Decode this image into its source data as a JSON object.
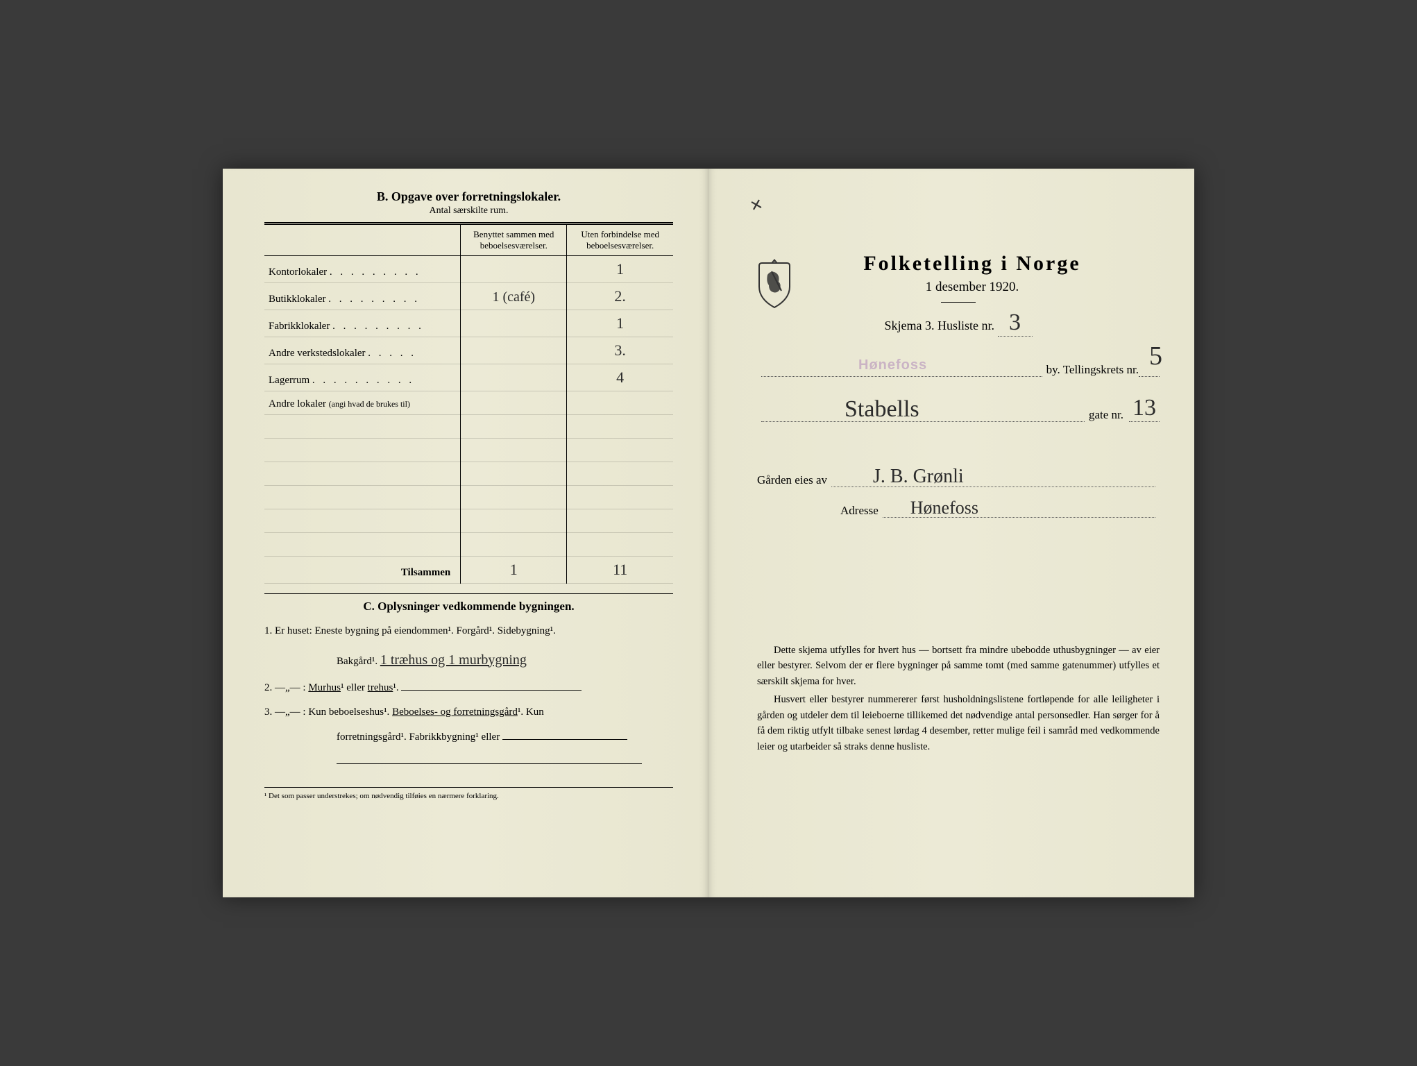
{
  "left": {
    "sectionB": {
      "title": "B.  Opgave over forretningslokaler.",
      "subtitle": "Antal særskilte rum.",
      "col_a": "Benyttet sammen med beboelsesværelser.",
      "col_b": "Uten forbindelse med beboelsesværelser.",
      "rows": [
        {
          "label": "Kontorlokaler",
          "dots": ". . . . . . . . .",
          "a": "",
          "b": "1"
        },
        {
          "label": "Butikklokaler",
          "dots": ". . . . . . . . .",
          "a": "1 (café)",
          "b": "2.",
          "indent": true
        },
        {
          "label": "Fabrikklokaler",
          "dots": ". . . . . . . . .",
          "a": "",
          "b": "1"
        },
        {
          "label": "Andre verkstedslokaler",
          "dots": ". . . . .",
          "a": "",
          "b": "3."
        },
        {
          "label": "Lagerrum",
          "dots": ". . . . . . . . . .",
          "a": "",
          "b": "4"
        },
        {
          "label": "Andre lokaler",
          "note": "(angi hvad de brukes til)",
          "dots": "",
          "a": "",
          "b": ""
        },
        {
          "label": "",
          "a": "",
          "b": ""
        },
        {
          "label": "",
          "a": "",
          "b": ""
        },
        {
          "label": "",
          "a": "",
          "b": ""
        },
        {
          "label": "",
          "a": "",
          "b": ""
        },
        {
          "label": "",
          "a": "",
          "b": ""
        },
        {
          "label": "",
          "a": "",
          "b": ""
        }
      ],
      "sum_label": "Tilsammen",
      "sum_a": "1",
      "sum_b": "11"
    },
    "sectionC": {
      "title": "C.  Oplysninger vedkommende bygningen.",
      "q1_prefix": "1.   Er huset:",
      "q1_text": "Eneste bygning på eiendommen¹. Forgård¹. Sidebygning¹.",
      "q1_line2_label": "Bakgård¹.",
      "q1_line2_hw": "1 træhus og 1 murbygning",
      "q2_prefix": "2.    —„— :",
      "q2_text": "Murhus¹ eller trehus¹.",
      "q3_prefix": "3.    —„— :",
      "q3_text_a": "Kun beboelseshus¹. Beboelses- og forretningsgård¹. Kun",
      "q3_text_b": "forretningsgård¹. Fabrikkbygning¹ eller"
    },
    "footnote": "¹  Det som passer understrekes; om nødvendig tilføies en nærmere forklaring."
  },
  "right": {
    "corner_x": "✕",
    "title": "Folketelling i Norge",
    "date": "1 desember 1920.",
    "schema_label": "Skjema 3.  Husliste nr.",
    "husliste_nr": "3",
    "by_stamp": "Hønefoss",
    "by_suffix": "by.   Tellingskrets nr.",
    "krets_nr": "5",
    "gate_hw": "Stabells",
    "gate_suffix": "gate nr.",
    "gate_nr": "13",
    "owner_label": "Gården eies av",
    "owner_hw": "J. B. Grønli",
    "addr_label": "Adresse",
    "addr_hw": "Hønefoss",
    "body_p1": "Dette skjema utfylles for hvert hus — bortsett fra mindre ubebodde uthusbygninger — av eier eller bestyrer. Selvom der er flere bygninger på samme tomt (med samme gatenummer) utfylles et særskilt skjema for hver.",
    "body_p2": "Husvert eller bestyrer nummererer først husholdningslistene fortløpende for alle leiligheter i gården og utdeler dem til leieboerne tillikemed det nødvendige antal personsedler. Han sørger for å få dem riktig utfylt tilbake senest lørdag 4 desember, retter mulige feil i samråd med vedkommende leier og utarbeider så straks denne husliste."
  },
  "colors": {
    "paper": "#ebe9d4",
    "ink": "#1a1a1a",
    "handwriting": "#2b2b2b",
    "stamp": "#b088b8"
  }
}
